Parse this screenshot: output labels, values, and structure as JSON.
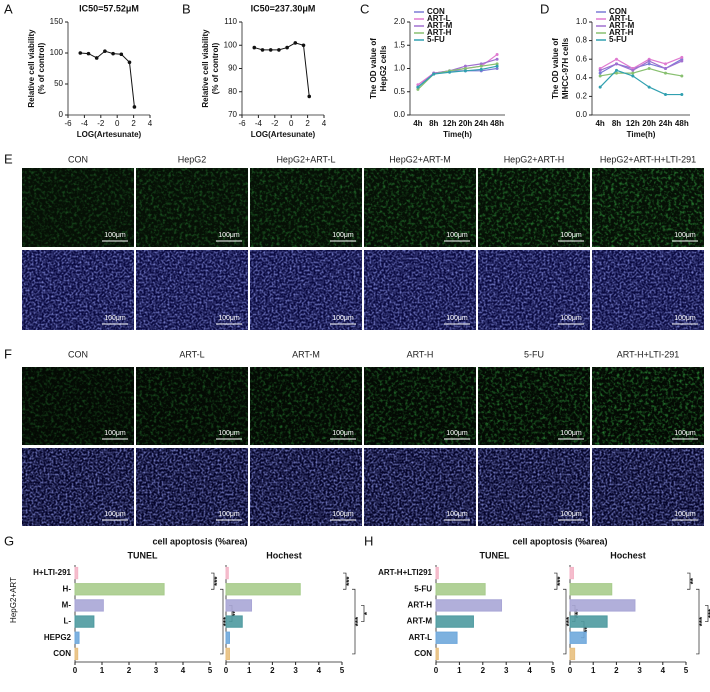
{
  "panel_labels": [
    "A",
    "B",
    "C",
    "D",
    "E",
    "F",
    "G",
    "H"
  ],
  "images": {
    "E": {
      "labels": [
        "CON",
        "HepG2",
        "HepG2+ART-L",
        "HepG2+ART-M",
        "HepG2+ART-H",
        "HepG2+ART-H+LTI-291"
      ],
      "scale_bar": "100μm"
    },
    "F": {
      "labels": [
        "CON",
        "ART-L",
        "ART-M",
        "ART-H",
        "5-FU",
        "ART-H+LTI-291"
      ],
      "scale_bar": "100μm"
    }
  },
  "groups": {
    "G": {
      "title": "cell apoptosis (%area)",
      "group_label": "HepG2+ART"
    },
    "H": {
      "title": "cell apoptosis (%area)"
    }
  },
  "chart_data": [
    {
      "type": "line",
      "title": "IC50=57.52μM",
      "ylabel": [
        "Relative cell viability",
        "(% of control)"
      ],
      "xlabel": "LOG(Artesunate)",
      "x": [
        -4.5,
        -3.5,
        -2.5,
        -1.5,
        -0.5,
        0.5,
        1.5,
        2.1
      ],
      "values": [
        100,
        99,
        92,
        103,
        99,
        98,
        85,
        13
      ],
      "color": "#111111",
      "xlim": [
        -6,
        4
      ],
      "xticks": [
        -6,
        -4,
        -2,
        0,
        2,
        4
      ],
      "ylim": [
        0,
        150
      ],
      "yticks": [
        0,
        50,
        100,
        150
      ]
    },
    {
      "type": "line",
      "title": "IC50=237.30μM",
      "ylabel": [
        "Relative cell viability",
        "(% of control)"
      ],
      "xlabel": "LOG(Artesunate)",
      "x": [
        -4.5,
        -3.5,
        -2.5,
        -1.5,
        -0.5,
        0.5,
        1.5,
        2.2
      ],
      "values": [
        99,
        98,
        98,
        98,
        99,
        101,
        100,
        78
      ],
      "color": "#111111",
      "xlim": [
        -6,
        4
      ],
      "xticks": [
        -6,
        -4,
        -2,
        0,
        2,
        4
      ],
      "ylim": [
        70,
        110
      ],
      "yticks": [
        70,
        80,
        90,
        100,
        110
      ]
    },
    {
      "type": "line",
      "ylabel": [
        "The OD value of",
        "HepG2 cells"
      ],
      "xlabel": "Time(h)",
      "categories": [
        "4h",
        "8h",
        "12h",
        "20h",
        "24h",
        "48h"
      ],
      "series": [
        {
          "name": "CON",
          "color": "#7b7bd6",
          "values": [
            0.6,
            0.9,
            0.95,
            0.95,
            0.95,
            1.0
          ]
        },
        {
          "name": "ART-L",
          "color": "#e07ad0",
          "values": [
            0.65,
            0.9,
            0.95,
            1.0,
            1.05,
            1.3
          ]
        },
        {
          "name": "ART-M",
          "color": "#a070d0",
          "values": [
            0.6,
            0.9,
            0.95,
            1.05,
            1.1,
            1.2
          ]
        },
        {
          "name": "ART-H",
          "color": "#88c070",
          "values": [
            0.55,
            0.88,
            0.95,
            1.0,
            1.05,
            1.1
          ]
        },
        {
          "name": "5-FU",
          "color": "#30a0b0",
          "values": [
            0.6,
            0.88,
            0.92,
            0.95,
            0.98,
            1.05
          ]
        }
      ],
      "ylim": [
        0,
        2
      ],
      "yticks": [
        {
          "value": 0,
          "label": "0.0"
        },
        0.5,
        {
          "value": 1,
          "label": "1.0"
        },
        1.5,
        {
          "value": 2,
          "label": "2.0"
        }
      ]
    },
    {
      "type": "line",
      "ylabel": [
        "The OD value of",
        "MHCC-97H cells"
      ],
      "xlabel": "Time(h)",
      "categories": [
        "4h",
        "8h",
        "12h",
        "20h",
        "24h",
        "48h"
      ],
      "series": [
        {
          "name": "CON",
          "color": "#7b7bd6",
          "values": [
            0.45,
            0.55,
            0.5,
            0.55,
            0.5,
            0.6
          ]
        },
        {
          "name": "ART-L",
          "color": "#e07ad0",
          "values": [
            0.5,
            0.6,
            0.5,
            0.6,
            0.55,
            0.62
          ]
        },
        {
          "name": "ART-M",
          "color": "#a070d0",
          "values": [
            0.48,
            0.55,
            0.48,
            0.58,
            0.5,
            0.58
          ]
        },
        {
          "name": "ART-H",
          "color": "#88c070",
          "values": [
            0.42,
            0.45,
            0.45,
            0.5,
            0.45,
            0.42
          ]
        },
        {
          "name": "5-FU",
          "color": "#30a0b0",
          "values": [
            0.3,
            0.48,
            0.42,
            0.3,
            0.22,
            0.22
          ]
        }
      ],
      "ylim": [
        0,
        1
      ],
      "yticks": [
        {
          "value": 0,
          "label": "0.0"
        },
        0.2,
        0.4,
        0.6,
        0.8,
        {
          "value": 1,
          "label": "1.0"
        }
      ]
    },
    {
      "type": "hbar",
      "title": "TUNEL",
      "categories": [
        "H+LTI-291",
        "H-",
        "M-",
        "L-",
        "HEPG2",
        "CON"
      ],
      "values": [
        0.1,
        3.3,
        1.05,
        0.7,
        0.15,
        0.1
      ],
      "colors": [
        "#f4b6c8",
        "#a8cc8c",
        "#a9a6d6",
        "#4e9aa0",
        "#6fa8dc",
        "#e8c080"
      ],
      "xlim": [
        0,
        5
      ],
      "xticks": [
        0,
        1,
        2,
        3,
        4,
        5
      ],
      "significance": [
        "***",
        "***",
        "**"
      ]
    },
    {
      "type": "hbar",
      "title": "Hochest",
      "values": [
        0.1,
        3.2,
        1.1,
        0.7,
        0.15,
        0.15
      ],
      "colors": [
        "#f4b6c8",
        "#a8cc8c",
        "#a9a6d6",
        "#4e9aa0",
        "#6fa8dc",
        "#e8c080"
      ],
      "xlim": [
        0,
        5
      ],
      "xticks": [
        0,
        1,
        2,
        3,
        4,
        5
      ],
      "significance": [
        "***",
        "***",
        "*"
      ]
    },
    {
      "type": "hbar",
      "title": "TUNEL",
      "categories": [
        "ART-H+LTI291",
        "5-FU",
        "ART-H",
        "ART-M",
        "ART-L",
        "CON"
      ],
      "values": [
        0.1,
        2.1,
        2.8,
        1.6,
        0.9,
        0.1
      ],
      "colors": [
        "#f4b6c8",
        "#a8cc8c",
        "#a9a6d6",
        "#4e9aa0",
        "#6fa8dc",
        "#e8c080"
      ],
      "xlim": [
        0,
        5
      ],
      "xticks": [
        0,
        1,
        2,
        3,
        4,
        5
      ],
      "significance": [
        "***",
        "***",
        "***",
        "**"
      ]
    },
    {
      "type": "hbar",
      "title": "Hochest",
      "values": [
        0.15,
        1.8,
        2.8,
        1.6,
        0.7,
        0.2
      ],
      "colors": [
        "#f4b6c8",
        "#a8cc8c",
        "#a9a6d6",
        "#4e9aa0",
        "#6fa8dc",
        "#e8c080"
      ],
      "xlim": [
        0,
        5
      ],
      "xticks": [
        0,
        1,
        2,
        3,
        4,
        5
      ],
      "significance": [
        "**",
        "***",
        "***",
        "***"
      ]
    }
  ]
}
